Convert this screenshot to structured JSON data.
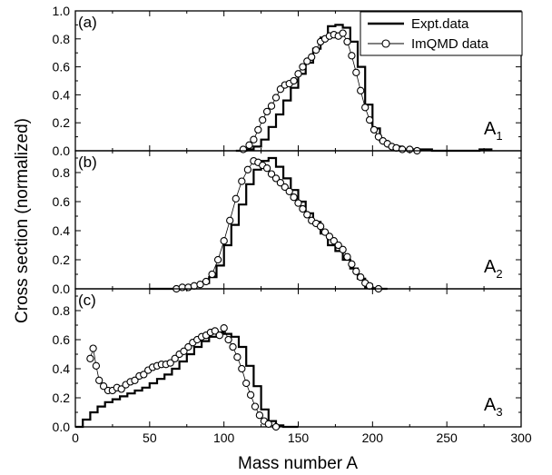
{
  "chart_data": {
    "type": "line",
    "xlabel": "Mass number A",
    "ylabel": "Cross section (normalized)",
    "xlim": [
      0,
      300
    ],
    "x_ticks": [
      "0",
      "50",
      "100",
      "150",
      "200",
      "250",
      "300"
    ],
    "legend": {
      "placement": "top-right",
      "entries": [
        "Expt.data",
        "ImQMD data"
      ]
    },
    "series_styles": {
      "expt": {
        "line": "solid",
        "color": "#000000"
      },
      "imqmd": {
        "marker": "open-circle",
        "line": "thin",
        "color": "#000000"
      }
    },
    "panels": [
      {
        "tag": "(a)",
        "label_main": "A",
        "label_sub": "1",
        "ylim": [
          0,
          1.0
        ],
        "y_ticks": [
          "0.0",
          "0.2",
          "0.4",
          "0.6",
          "0.8",
          "1.0"
        ],
        "series": [
          {
            "name": "Expt.data",
            "x": [
              108,
              115,
              120,
              125,
              130,
              135,
              140,
              145,
              150,
              155,
              160,
              165,
              170,
              175,
              180,
              185,
              190,
              195,
              200,
              205,
              210,
              220,
              240,
              260,
              272,
              280
            ],
            "y": [
              0.0,
              0.01,
              0.03,
              0.08,
              0.17,
              0.26,
              0.36,
              0.45,
              0.55,
              0.63,
              0.73,
              0.81,
              0.89,
              0.9,
              0.88,
              0.78,
              0.6,
              0.33,
              0.16,
              0.07,
              0.03,
              0.01,
              0.0,
              0.0,
              0.01,
              0.0
            ]
          },
          {
            "name": "ImQMD data",
            "x": [
              113,
              117,
              120,
              123,
              126,
              129,
              132,
              135,
              138,
              141,
              144,
              147,
              150,
              153,
              156,
              159,
              162,
              165,
              168,
              171,
              174,
              177,
              180,
              183,
              186,
              189,
              192,
              195,
              198,
              201,
              204,
              207,
              210,
              213,
              216,
              220,
              225,
              230
            ],
            "y": [
              0.01,
              0.04,
              0.08,
              0.15,
              0.22,
              0.28,
              0.32,
              0.38,
              0.44,
              0.47,
              0.48,
              0.5,
              0.55,
              0.6,
              0.64,
              0.67,
              0.72,
              0.78,
              0.8,
              0.82,
              0.83,
              0.82,
              0.84,
              0.78,
              0.68,
              0.56,
              0.43,
              0.31,
              0.22,
              0.15,
              0.1,
              0.07,
              0.05,
              0.03,
              0.02,
              0.01,
              0.01,
              0.0
            ]
          }
        ]
      },
      {
        "tag": "(b)",
        "label_main": "A",
        "label_sub": "2",
        "ylim": [
          0,
          0.95
        ],
        "y_ticks": [
          "0.0",
          "0.2",
          "0.4",
          "0.6",
          "0.8"
        ],
        "series": [
          {
            "name": "Expt.data",
            "x": [
              50,
              60,
              70,
              80,
              85,
              90,
              95,
              100,
              105,
              110,
              115,
              120,
              125,
              130,
              135,
              140,
              145,
              150,
              155,
              160,
              165,
              170,
              175,
              180,
              185,
              190,
              195,
              200,
              210
            ],
            "y": [
              0.0,
              0.0,
              0.01,
              0.02,
              0.04,
              0.08,
              0.16,
              0.3,
              0.44,
              0.58,
              0.72,
              0.82,
              0.88,
              0.9,
              0.84,
              0.76,
              0.68,
              0.6,
              0.52,
              0.46,
              0.38,
              0.3,
              0.26,
              0.2,
              0.14,
              0.07,
              0.01,
              0.0,
              0.0
            ]
          },
          {
            "name": "ImQMD data",
            "x": [
              68,
              72,
              76,
              80,
              84,
              88,
              92,
              96,
              100,
              104,
              108,
              112,
              116,
              120,
              123,
              126,
              129,
              132,
              135,
              138,
              141,
              144,
              147,
              150,
              153,
              156,
              159,
              162,
              165,
              168,
              171,
              174,
              177,
              180,
              183,
              186,
              189,
              192,
              195,
              198,
              204
            ],
            "y": [
              0.0,
              0.01,
              0.01,
              0.02,
              0.03,
              0.05,
              0.1,
              0.2,
              0.33,
              0.47,
              0.62,
              0.74,
              0.82,
              0.88,
              0.87,
              0.85,
              0.83,
              0.79,
              0.76,
              0.73,
              0.7,
              0.67,
              0.63,
              0.59,
              0.55,
              0.51,
              0.47,
              0.45,
              0.43,
              0.39,
              0.36,
              0.33,
              0.3,
              0.27,
              0.22,
              0.17,
              0.12,
              0.08,
              0.04,
              0.02,
              0.0
            ]
          }
        ]
      },
      {
        "tag": "(c)",
        "label_main": "A",
        "label_sub": "3",
        "ylim": [
          0,
          0.95
        ],
        "y_ticks": [
          "0.0",
          "0.2",
          "0.4",
          "0.6",
          "0.8"
        ],
        "series": [
          {
            "name": "Expt.data",
            "x": [
              0,
              5,
              10,
              15,
              20,
              25,
              30,
              35,
              40,
              45,
              50,
              55,
              60,
              65,
              70,
              75,
              80,
              85,
              90,
              95,
              100,
              105,
              110,
              115,
              120,
              125,
              130,
              135,
              140,
              145,
              150
            ],
            "y": [
              0.0,
              0.05,
              0.1,
              0.14,
              0.17,
              0.19,
              0.21,
              0.23,
              0.25,
              0.27,
              0.3,
              0.33,
              0.36,
              0.4,
              0.45,
              0.5,
              0.55,
              0.59,
              0.62,
              0.65,
              0.64,
              0.62,
              0.55,
              0.42,
              0.28,
              0.12,
              0.04,
              0.01,
              0.0,
              0.0,
              0.0
            ]
          },
          {
            "name": "ImQMD data",
            "x": [
              10,
              12,
              14,
              16,
              19,
              22,
              25,
              28,
              31,
              34,
              37,
              40,
              43,
              46,
              49,
              52,
              55,
              58,
              61,
              64,
              67,
              70,
              73,
              76,
              79,
              82,
              85,
              88,
              91,
              94,
              97,
              100,
              103,
              106,
              109,
              112,
              115,
              118,
              121,
              124,
              127,
              130,
              135
            ],
            "y": [
              0.47,
              0.54,
              0.42,
              0.32,
              0.28,
              0.25,
              0.25,
              0.27,
              0.26,
              0.29,
              0.31,
              0.32,
              0.35,
              0.36,
              0.39,
              0.41,
              0.42,
              0.43,
              0.43,
              0.44,
              0.47,
              0.5,
              0.52,
              0.55,
              0.58,
              0.6,
              0.62,
              0.63,
              0.65,
              0.66,
              0.63,
              0.68,
              0.6,
              0.55,
              0.48,
              0.4,
              0.3,
              0.22,
              0.14,
              0.08,
              0.04,
              0.02,
              0.0
            ]
          }
        ]
      }
    ]
  }
}
